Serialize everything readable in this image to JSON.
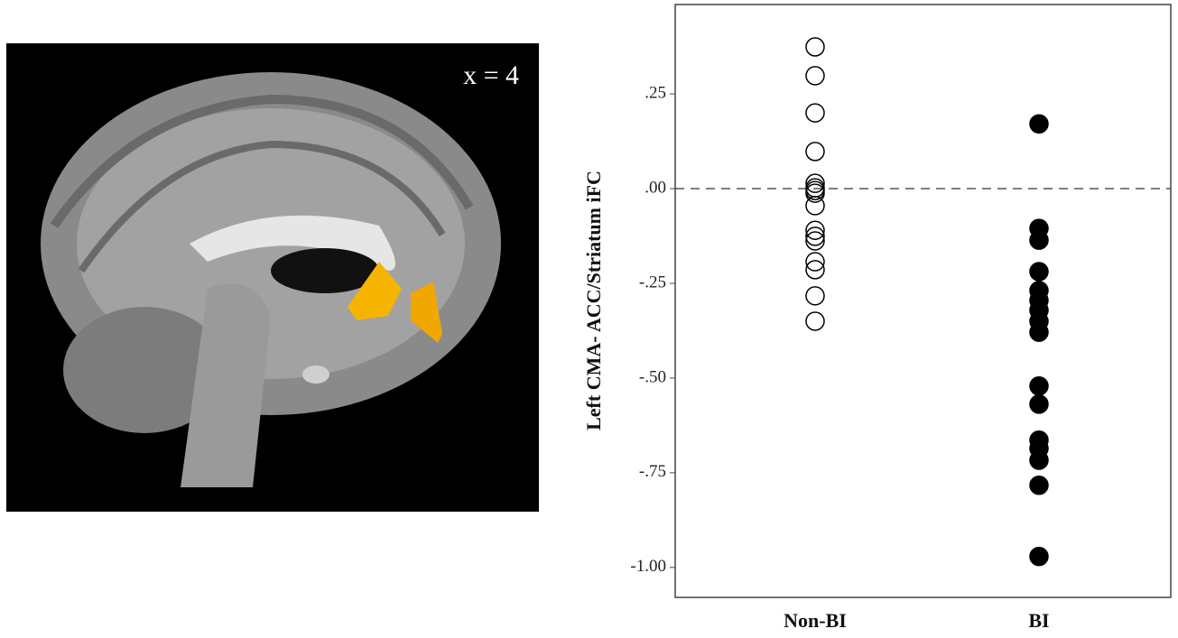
{
  "chart_data": {
    "type": "strip",
    "annotation": "x = 4",
    "y_label": "Left CMA- ACC/Striatum iFC",
    "ylim": [
      -1.079,
      0.486
    ],
    "yticks": [
      {
        "value": 0.25,
        "label": ".25"
      },
      {
        "value": 0,
        "label": ".00"
      },
      {
        "value": -0.25,
        "label": "-.25"
      },
      {
        "value": -0.5,
        "label": "-.50"
      },
      {
        "value": -0.75,
        "label": "-.75"
      },
      {
        "value": -1,
        "label": "-1.00"
      }
    ],
    "reference_line": 0,
    "categories": [
      "Non-BI",
      "BI"
    ],
    "series": [
      {
        "color": "#000000",
        "filled": false,
        "values": [
          0.374,
          0.298,
          0.2,
          0.098,
          0.014,
          0.002,
          -0.005,
          -0.012,
          -0.045,
          -0.11,
          -0.126,
          -0.138,
          -0.193,
          -0.214,
          -0.283,
          -0.35
        ]
      },
      {
        "color": "#000000",
        "filled": true,
        "values": [
          0.171,
          -0.105,
          -0.136,
          -0.219,
          -0.269,
          -0.295,
          -0.321,
          -0.35,
          -0.379,
          -0.521,
          -0.569,
          -0.664,
          -0.686,
          -0.717,
          -0.783,
          -0.971
        ]
      }
    ]
  }
}
